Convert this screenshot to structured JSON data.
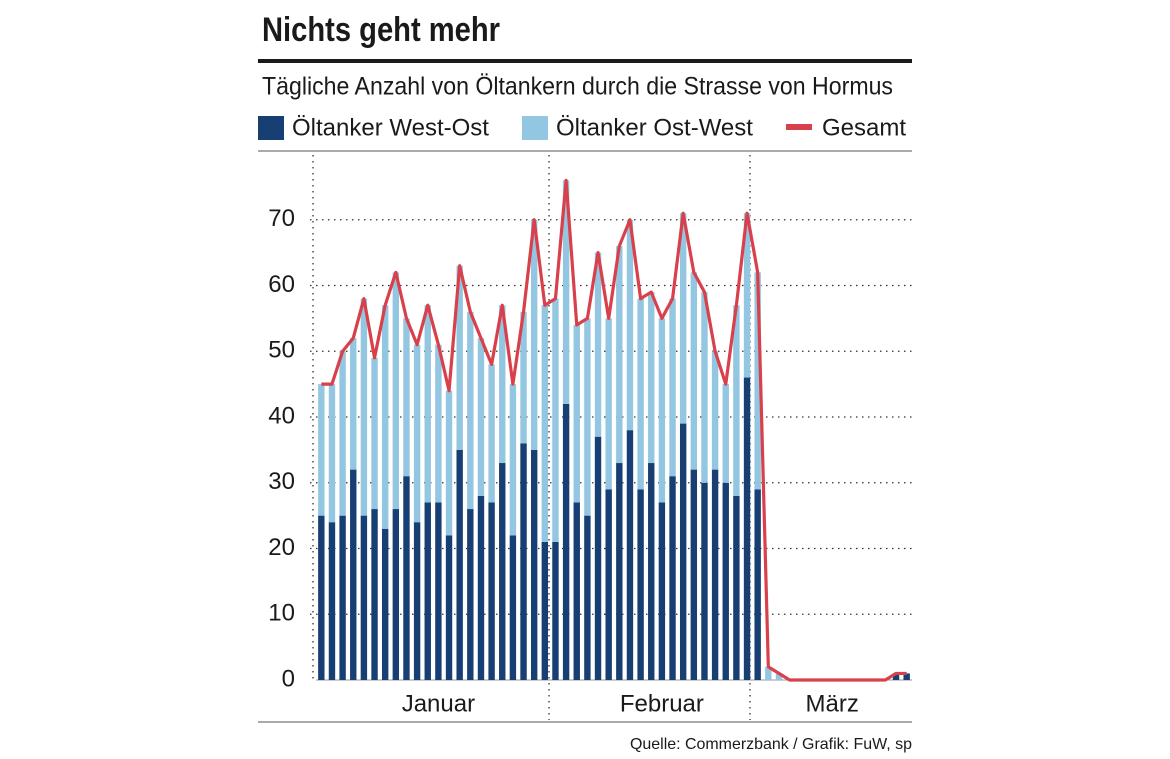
{
  "chart_data": {
    "type": "bar",
    "title": "Nichts geht mehr",
    "subtitle": "Tägliche Anzahl von Öltankern durch die Strasse von Hormus",
    "source": "Quelle: Commerzbank / Grafik: FuW, sp",
    "categories": [
      null,
      null,
      null,
      null,
      null,
      null,
      null,
      null,
      null,
      null,
      null,
      "Januar",
      null,
      null,
      null,
      null,
      null,
      null,
      null,
      null,
      null,
      null,
      null,
      null,
      null,
      null,
      null,
      null,
      null,
      null,
      null,
      null,
      "Februar",
      null,
      null,
      null,
      null,
      null,
      null,
      null,
      null,
      null,
      null,
      null,
      null,
      null,
      null,
      null,
      "März",
      null,
      null,
      null,
      null,
      null,
      null,
      null
    ],
    "series": [
      {
        "name": "Öltanker West-Ost",
        "color": "#183f74",
        "values": [
          25,
          24,
          25,
          32,
          25,
          26,
          23,
          26,
          31,
          24,
          27,
          27,
          22,
          35,
          26,
          28,
          27,
          33,
          22,
          36,
          35,
          21,
          21,
          42,
          27,
          25,
          37,
          29,
          33,
          38,
          29,
          33,
          27,
          31,
          39,
          32,
          30,
          32,
          30,
          28,
          46,
          29,
          0,
          0,
          0,
          0,
          0,
          0,
          0,
          0,
          0,
          0,
          0,
          0,
          1,
          1
        ]
      },
      {
        "name": "Öltanker Ost-West",
        "color": "#93c6e1",
        "values": [
          20,
          21,
          25,
          20,
          33,
          23,
          34,
          36,
          24,
          27,
          30,
          24,
          22,
          28,
          30,
          24,
          21,
          24,
          23,
          20,
          35,
          36,
          37,
          34,
          27,
          30,
          28,
          26,
          33,
          32,
          29,
          26,
          28,
          27,
          32,
          30,
          29,
          18,
          15,
          29,
          25,
          33,
          2,
          1,
          0,
          0,
          0,
          0,
          0,
          0,
          0,
          0,
          0,
          0,
          0,
          0
        ]
      },
      {
        "name": "Gesamt",
        "color": "#d8414b",
        "type": "line",
        "values": [
          45,
          45,
          50,
          52,
          58,
          49,
          57,
          62,
          55,
          51,
          57,
          51,
          44,
          63,
          56,
          52,
          48,
          57,
          45,
          56,
          70,
          57,
          58,
          76,
          54,
          55,
          65,
          55,
          66,
          70,
          58,
          59,
          55,
          58,
          71,
          62,
          59,
          50,
          45,
          57,
          71,
          62,
          2,
          1,
          0,
          0,
          0,
          0,
          0,
          0,
          0,
          0,
          0,
          0,
          1,
          1
        ]
      }
    ],
    "stacked": true,
    "ylim": [
      0,
      80
    ],
    "yticks": [
      0,
      10,
      20,
      30,
      40,
      50,
      60,
      70
    ],
    "grid": true
  }
}
